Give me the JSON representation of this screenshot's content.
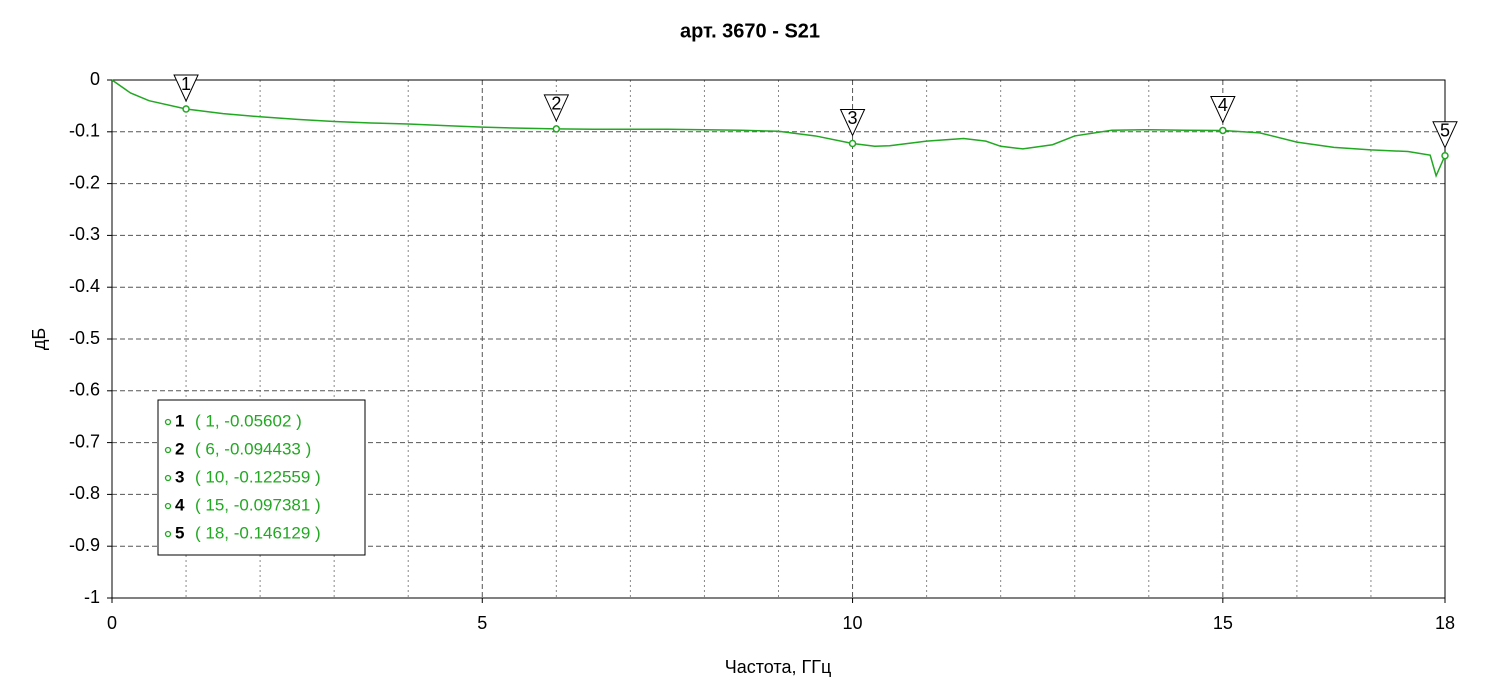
{
  "chart_data": {
    "type": "line",
    "title": "арт. 3670 - S21",
    "x_label": "Частота, ГГц",
    "y_label": "дБ",
    "xlim": [
      0,
      18
    ],
    "ylim": [
      -1,
      0
    ],
    "xticks": [
      0,
      5,
      10,
      15,
      18
    ],
    "xminorticks": [
      1,
      2,
      3,
      4,
      6,
      7,
      8,
      9,
      11,
      12,
      13,
      14,
      16,
      17
    ],
    "yticks": [
      0,
      -0.1,
      -0.2,
      -0.3,
      -0.4,
      -0.5,
      -0.6,
      -0.7,
      -0.8,
      -0.9,
      -1
    ],
    "grid": true,
    "series": [
      {
        "color": "#22a822",
        "x": [
          0,
          0.25,
          0.5,
          1,
          1.5,
          2,
          2.5,
          3,
          3.5,
          4,
          4.5,
          5,
          5.5,
          6,
          6.5,
          7,
          7.5,
          8,
          8.5,
          9,
          9.5,
          10,
          10.3,
          10.5,
          11,
          11.5,
          11.8,
          12,
          12.3,
          12.7,
          13,
          13.5,
          14,
          14.5,
          15,
          15.5,
          16,
          16.5,
          17,
          17.5,
          17.8,
          17.88,
          18
        ],
        "values": [
          0,
          -0.025,
          -0.04,
          -0.056,
          -0.065,
          -0.071,
          -0.076,
          -0.08,
          -0.083,
          -0.085,
          -0.088,
          -0.091,
          -0.093,
          -0.0944,
          -0.095,
          -0.095,
          -0.095,
          -0.096,
          -0.097,
          -0.099,
          -0.108,
          -0.1226,
          -0.128,
          -0.127,
          -0.118,
          -0.113,
          -0.118,
          -0.128,
          -0.133,
          -0.125,
          -0.108,
          -0.097,
          -0.096,
          -0.097,
          -0.0974,
          -0.102,
          -0.12,
          -0.13,
          -0.135,
          -0.138,
          -0.145,
          -0.185,
          -0.146
        ]
      }
    ],
    "markers": [
      {
        "label": "1",
        "x": 1,
        "y": -0.05602,
        "text": "( 1, -0.05602 )"
      },
      {
        "label": "2",
        "x": 6,
        "y": -0.094433,
        "text": "( 6, -0.094433 )"
      },
      {
        "label": "3",
        "x": 10,
        "y": -0.122559,
        "text": "( 10, -0.122559 )"
      },
      {
        "label": "4",
        "x": 15,
        "y": -0.097381,
        "text": "( 15, -0.097381 )"
      },
      {
        "label": "5",
        "x": 18,
        "y": -0.146129,
        "text": "( 18, -0.146129 )"
      }
    ]
  }
}
